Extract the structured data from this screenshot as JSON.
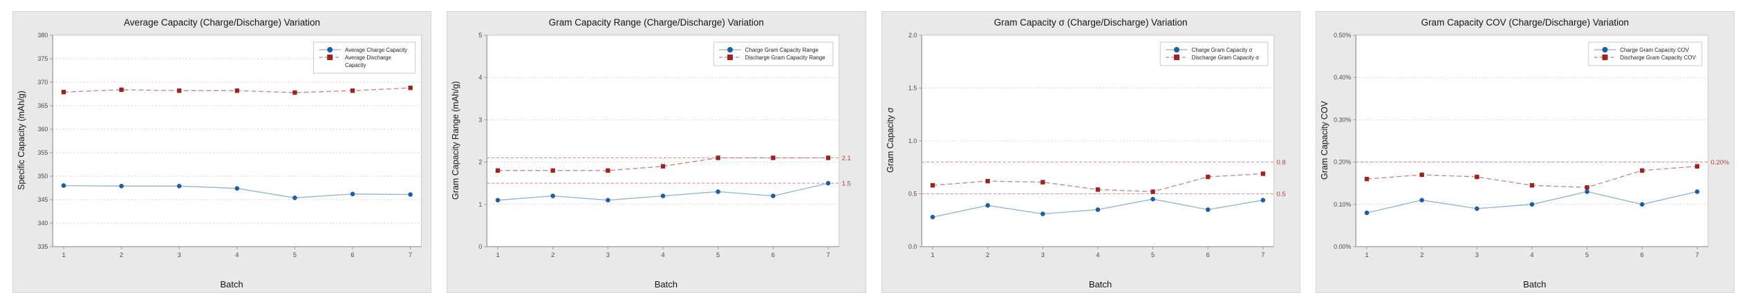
{
  "colors": {
    "card_bg": "#e9e9e9",
    "card_border": "#d5d5d5",
    "plot_bg": "#ffffff",
    "plot_border": "#c8c8c8",
    "axis_spine": "#9a9a9a",
    "grid": "#d2d2d2",
    "tick_text": "#4a4a4a",
    "title_text": "#141414",
    "charge_marker": "#1b5ea6",
    "charge_line": "#8db3d8",
    "discharge_marker": "#9e2222",
    "discharge_line": "#c48383",
    "ref_line": "#d88f8f",
    "ref_label": "#b4413e",
    "legend_bg": "#ffffff",
    "legend_border": "#c9c9c9",
    "legend_text": "#222222"
  },
  "chart_data": [
    {
      "type": "line",
      "title": "Average Capacity (Charge/Discharge) Variation",
      "xlabel": "Batch",
      "ylabel": "Specific Capacity (mAh/g)",
      "x": [
        1,
        2,
        3,
        4,
        5,
        6,
        7
      ],
      "xtick_labels": [
        "1",
        "2",
        "3",
        "4",
        "5",
        "6",
        "7"
      ],
      "ylim": [
        335,
        380
      ],
      "ytick_values": [
        335,
        340,
        345,
        350,
        355,
        360,
        365,
        370,
        375,
        380
      ],
      "ytick_labels": [
        "335",
        "340",
        "345",
        "350",
        "355",
        "360",
        "365",
        "370",
        "375",
        "380"
      ],
      "grid": true,
      "legend_position": "top-right",
      "series": [
        {
          "name": "Average Charge Capacity",
          "name_lines": [
            "Average Charge Capacity"
          ],
          "marker": "circle",
          "dash": "",
          "role": "charge",
          "values": [
            348.0,
            347.9,
            347.9,
            347.4,
            345.4,
            346.2,
            346.1
          ]
        },
        {
          "name": "Average Discharge Capacity",
          "name_lines": [
            "Average Discharge",
            "Capacity"
          ],
          "marker": "square",
          "dash": "7 4",
          "role": "discharge",
          "values": [
            367.9,
            368.4,
            368.2,
            368.2,
            367.8,
            368.2,
            368.8
          ]
        }
      ],
      "ref_lines": []
    },
    {
      "type": "line",
      "title": "Gram Capacity Range (Charge/Discharge) Variation",
      "xlabel": "Batch",
      "ylabel": "Gram Capacity Range (mAh/g)",
      "x": [
        1,
        2,
        3,
        4,
        5,
        6,
        7
      ],
      "xtick_labels": [
        "1",
        "2",
        "3",
        "4",
        "5",
        "6",
        "7"
      ],
      "ylim": [
        0,
        5
      ],
      "ytick_values": [
        0,
        1,
        2,
        3,
        4,
        5
      ],
      "ytick_labels": [
        "0",
        "1",
        "2",
        "3",
        "4",
        "5"
      ],
      "grid": true,
      "legend_position": "top-right",
      "series": [
        {
          "name": "Charge Gram Capacity Range",
          "name_lines": [
            "Charge Gram Capacity Range"
          ],
          "marker": "circle",
          "dash": "",
          "role": "charge",
          "values": [
            1.1,
            1.2,
            1.1,
            1.2,
            1.3,
            1.2,
            1.5
          ]
        },
        {
          "name": "Discharge Gram Capacity Range",
          "name_lines": [
            "Discharge Gram Capacity Range"
          ],
          "marker": "square",
          "dash": "7 4",
          "role": "discharge",
          "values": [
            1.8,
            1.8,
            1.8,
            1.9,
            2.1,
            2.1,
            2.1
          ]
        }
      ],
      "ref_lines": [
        {
          "value": 2.1,
          "label": "2.1"
        },
        {
          "value": 1.5,
          "label": "1.5"
        }
      ]
    },
    {
      "type": "line",
      "title": "Gram Capacity σ  (Charge/Discharge) Variation",
      "xlabel": "Batch",
      "ylabel": "Gram Capacity σ",
      "x": [
        1,
        2,
        3,
        4,
        5,
        6,
        7
      ],
      "xtick_labels": [
        "1",
        "2",
        "3",
        "4",
        "5",
        "6",
        "7"
      ],
      "ylim": [
        0,
        2
      ],
      "ytick_values": [
        0,
        0.5,
        1,
        1.5,
        2
      ],
      "ytick_labels": [
        "0.0",
        "0.5",
        "1.0",
        "1.5",
        "2.0"
      ],
      "grid": true,
      "legend_position": "top-right",
      "series": [
        {
          "name": "Charge Gram Capacity σ",
          "name_lines": [
            "Charge Gram Capacity σ"
          ],
          "marker": "circle",
          "dash": "",
          "role": "charge",
          "values": [
            0.28,
            0.39,
            0.31,
            0.35,
            0.45,
            0.35,
            0.44
          ]
        },
        {
          "name": "Discharge Gram Capacity σ",
          "name_lines": [
            "Discharge Gram Capacity σ"
          ],
          "marker": "square",
          "dash": "7 4",
          "role": "discharge",
          "values": [
            0.58,
            0.62,
            0.61,
            0.54,
            0.52,
            0.66,
            0.69
          ]
        }
      ],
      "ref_lines": [
        {
          "value": 0.8,
          "label": "0.8"
        },
        {
          "value": 0.5,
          "label": "0.5"
        }
      ]
    },
    {
      "type": "line",
      "title": "Gram Capacity COV (Charge/Discharge) Variation",
      "xlabel": "Batch",
      "ylabel": "Gram Capacity COV",
      "x": [
        1,
        2,
        3,
        4,
        5,
        6,
        7
      ],
      "xtick_labels": [
        "1",
        "2",
        "3",
        "4",
        "5",
        "6",
        "7"
      ],
      "ylim": [
        0,
        0.5
      ],
      "ytick_values": [
        0,
        0.1,
        0.2,
        0.3,
        0.4,
        0.5
      ],
      "ytick_labels": [
        "0.00%",
        "0.10%",
        "0.20%",
        "0.30%",
        "0.40%",
        "0.50%"
      ],
      "grid": true,
      "legend_position": "top-right",
      "series": [
        {
          "name": "Charge Gram Capacity COV",
          "name_lines": [
            "Charge Gram Capacity COV"
          ],
          "marker": "circle",
          "dash": "",
          "role": "charge",
          "values": [
            0.08,
            0.11,
            0.09,
            0.1,
            0.13,
            0.1,
            0.13
          ]
        },
        {
          "name": "Discharge Gram Capacity COV",
          "name_lines": [
            "Discharge Gram Capacity COV"
          ],
          "marker": "square",
          "dash": "7 4",
          "role": "discharge",
          "values": [
            0.16,
            0.17,
            0.165,
            0.145,
            0.14,
            0.18,
            0.19
          ]
        }
      ],
      "ref_lines": [
        {
          "value": 0.2,
          "label": "0.20%"
        }
      ]
    }
  ]
}
